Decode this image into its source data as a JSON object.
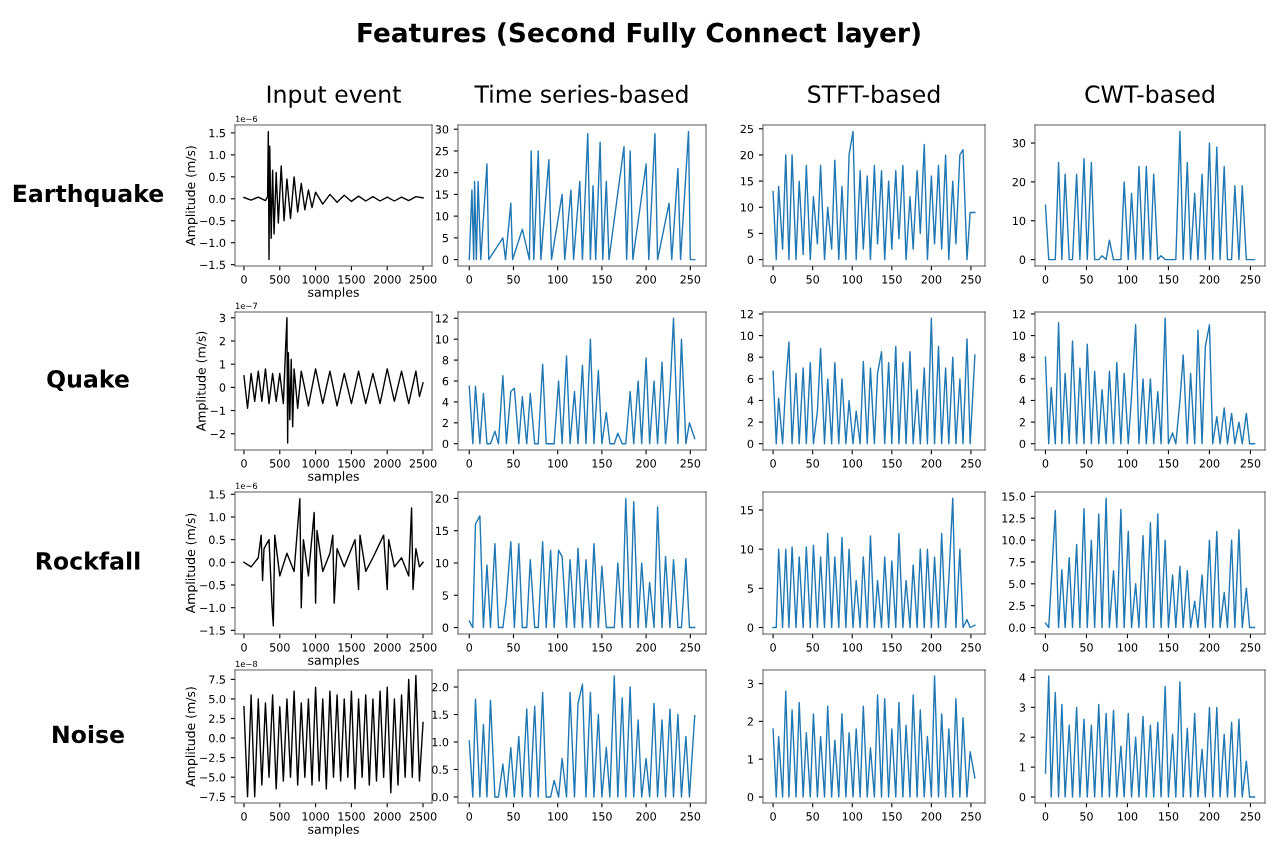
{
  "chart_data": [
    {
      "type": "other",
      "title": "Features (Second Fully Connect layer)",
      "annotations": [
        "Earthquake",
        "Quake",
        "Rockfall",
        "Noise"
      ]
    },
    {
      "type": "line",
      "title": "Input event",
      "xlabel": "samples",
      "ylabel": "Amplitude (m/s)",
      "annotations": [
        "1e−6"
      ],
      "xlim": [
        -125,
        2625
      ],
      "xticks": [
        0,
        500,
        1000,
        1500,
        2000,
        2500
      ],
      "ylim": [
        -1.53,
        1.68
      ],
      "yticks": [
        -1.5,
        {
          "value": -1,
          "label": "−1.0"
        },
        -0.5,
        {
          "value": 0,
          "label": "0.0"
        },
        0.5,
        {
          "value": 1,
          "label": "1.0"
        },
        1.5
      ],
      "series": [
        {
          "color": "#000000",
          "x": [
            0,
            100,
            200,
            300,
            330,
            340,
            350,
            360,
            380,
            400,
            420,
            450,
            480,
            520,
            560,
            600,
            650,
            700,
            750,
            800,
            850,
            900,
            950,
            1000,
            1100,
            1200,
            1300,
            1400,
            1500,
            1600,
            1700,
            1800,
            1900,
            2000,
            2100,
            2200,
            2300,
            2400,
            2500
          ],
          "values": [
            0.03,
            -0.03,
            0.04,
            -0.04,
            0.05,
            1.53,
            -1.38,
            1.2,
            -0.9,
            0.65,
            -0.8,
            0.6,
            -0.55,
            0.75,
            -0.5,
            0.45,
            -0.45,
            0.5,
            -0.3,
            0.35,
            -0.25,
            0.2,
            -0.2,
            0.15,
            -0.12,
            0.1,
            -0.08,
            0.08,
            -0.06,
            0.06,
            -0.05,
            0.05,
            -0.05,
            0.04,
            -0.05,
            0.04,
            -0.04,
            0.05,
            0.02
          ]
        }
      ]
    },
    {
      "type": "line",
      "title": "Time series-based",
      "xlim": [
        -12.75,
        267.75
      ],
      "xticks": [
        0,
        50,
        100,
        150,
        200,
        250
      ],
      "ylim": [
        -1.475,
        30.975
      ],
      "yticks": [
        0,
        5,
        10,
        15,
        20,
        25,
        30
      ],
      "series": [
        {
          "color": "#1f77b4",
          "x": [
            0,
            3,
            5,
            6,
            8,
            10,
            13,
            20,
            22,
            38,
            41,
            47,
            49,
            60,
            68,
            70,
            73,
            78,
            81,
            90,
            93,
            105,
            108,
            115,
            118,
            125,
            128,
            134,
            137,
            140,
            143,
            148,
            151,
            155,
            158,
            175,
            178,
            182,
            185,
            200,
            203,
            210,
            213,
            226,
            229,
            236,
            239,
            248,
            250,
            255
          ],
          "values": [
            0,
            16,
            0,
            18,
            0,
            18,
            0,
            22,
            0,
            5,
            0,
            13,
            0,
            7,
            0,
            25,
            0,
            25,
            0,
            23,
            0,
            15,
            0,
            16,
            0,
            18,
            0,
            29,
            0,
            17,
            0,
            27,
            0,
            18,
            0,
            26,
            0,
            25,
            0,
            22,
            0,
            29,
            0,
            13,
            0,
            21,
            0,
            29.5,
            0,
            0
          ]
        }
      ]
    },
    {
      "type": "line",
      "title": "STFT-based",
      "xlim": [
        -12.75,
        267.75
      ],
      "xticks": [
        0,
        50,
        100,
        150,
        200,
        250
      ],
      "ylim": [
        -1.225,
        25.725
      ],
      "yticks": [
        0,
        5,
        10,
        15,
        20,
        25
      ],
      "x": [
        0,
        4,
        7,
        12,
        16,
        20,
        24,
        29,
        33,
        38,
        42,
        47,
        51,
        56,
        60,
        65,
        69,
        74,
        78,
        83,
        87,
        92,
        96,
        101,
        105,
        110,
        114,
        119,
        123,
        128,
        132,
        137,
        141,
        146,
        150,
        155,
        159,
        164,
        168,
        173,
        177,
        182,
        186,
        191,
        195,
        200,
        204,
        209,
        213,
        218,
        222,
        227,
        231,
        236,
        240,
        245,
        249,
        255
      ],
      "series": [
        {
          "color": "#1f77b4",
          "values": [
            13,
            0,
            14,
            2,
            20,
            0,
            20,
            0,
            15,
            1,
            18,
            0,
            12,
            3,
            18,
            0,
            10,
            2,
            19,
            0,
            14,
            0,
            20,
            24.5,
            0,
            17,
            2,
            16,
            0,
            18,
            3,
            17,
            0,
            15,
            2,
            17,
            4,
            18,
            0,
            12,
            2,
            17,
            5,
            22,
            0,
            16,
            3,
            18,
            2,
            20,
            0,
            15,
            3,
            20,
            21,
            0,
            9,
            9
          ]
        }
      ]
    },
    {
      "type": "line",
      "title": "CWT-based",
      "xlim": [
        -12.75,
        267.75
      ],
      "xticks": [
        0,
        50,
        100,
        150,
        200,
        250
      ],
      "ylim": [
        -1.65,
        34.65
      ],
      "yticks": [
        0,
        10,
        20,
        30
      ],
      "x": [
        0,
        4,
        7,
        12,
        16,
        20,
        24,
        29,
        33,
        38,
        42,
        47,
        51,
        56,
        60,
        65,
        69,
        74,
        78,
        83,
        87,
        92,
        96,
        101,
        105,
        110,
        114,
        119,
        123,
        128,
        132,
        137,
        141,
        146,
        150,
        155,
        159,
        164,
        168,
        173,
        177,
        182,
        186,
        191,
        195,
        200,
        204,
        209,
        213,
        218,
        222,
        227,
        231,
        236,
        240,
        245,
        249,
        255
      ],
      "series": [
        {
          "color": "#1f77b4",
          "values": [
            14,
            0,
            0,
            0,
            25,
            0,
            22,
            0,
            0,
            22,
            0,
            26,
            0,
            25,
            0,
            0,
            1,
            0,
            5,
            0,
            0,
            0,
            20,
            0,
            17,
            0,
            24,
            0,
            24,
            0,
            22,
            0,
            1,
            0,
            0,
            0,
            0,
            33,
            0,
            25,
            0,
            17,
            0,
            22,
            0,
            30,
            0,
            29,
            0,
            24,
            0,
            0,
            19,
            0,
            19,
            0,
            0,
            0
          ]
        }
      ]
    },
    {
      "type": "line",
      "xlabel": "samples",
      "ylabel": "Amplitude (m/s)",
      "annotations": [
        "1e−7"
      ],
      "xlim": [
        -125,
        2625
      ],
      "xticks": [
        0,
        500,
        1000,
        1500,
        2000,
        2500
      ],
      "ylim": [
        -2.7,
        3.25
      ],
      "yticks": [
        -2,
        -1,
        0,
        1,
        2,
        3
      ],
      "series": [
        {
          "color": "#000000",
          "x": [
            0,
            50,
            100,
            150,
            200,
            250,
            300,
            350,
            400,
            450,
            500,
            550,
            580,
            600,
            610,
            620,
            640,
            660,
            680,
            700,
            750,
            800,
            900,
            1000,
            1100,
            1200,
            1300,
            1400,
            1500,
            1600,
            1700,
            1800,
            1900,
            2000,
            2100,
            2200,
            2300,
            2400,
            2450,
            2500
          ],
          "values": [
            0.5,
            -0.9,
            0.6,
            -0.6,
            0.7,
            -0.6,
            0.8,
            -0.7,
            0.6,
            -0.6,
            0.6,
            -0.7,
            1.6,
            3.0,
            -2.4,
            1.5,
            -1.4,
            1.2,
            -1.7,
            0.8,
            -0.9,
            0.7,
            -0.8,
            0.8,
            -0.7,
            0.7,
            -0.8,
            0.6,
            -0.7,
            0.7,
            -0.7,
            0.6,
            -0.7,
            0.8,
            -0.6,
            0.7,
            -0.7,
            0.7,
            -0.4,
            0.2
          ]
        }
      ]
    },
    {
      "type": "line",
      "xlim": [
        -12.75,
        267.75
      ],
      "xticks": [
        0,
        50,
        100,
        150,
        200,
        250
      ],
      "ylim": [
        -0.6,
        12.6
      ],
      "yticks": [
        0,
        2,
        4,
        6,
        8,
        10,
        12
      ],
      "x": [
        0,
        4,
        7,
        12,
        16,
        20,
        24,
        29,
        33,
        38,
        42,
        47,
        51,
        56,
        60,
        65,
        69,
        74,
        78,
        83,
        87,
        92,
        96,
        101,
        105,
        110,
        114,
        119,
        123,
        128,
        132,
        137,
        141,
        146,
        150,
        155,
        159,
        164,
        168,
        173,
        177,
        182,
        186,
        191,
        195,
        200,
        204,
        209,
        213,
        218,
        222,
        227,
        231,
        236,
        240,
        245,
        249,
        255
      ],
      "series": [
        {
          "color": "#1f77b4",
          "values": [
            5.5,
            0,
            5.5,
            0,
            4.8,
            0,
            0,
            1.2,
            0,
            6.5,
            0,
            5,
            5.3,
            0,
            4.5,
            0,
            4.8,
            0,
            0,
            7.6,
            0,
            0,
            0,
            6,
            0,
            8.4,
            0,
            5,
            0,
            7.5,
            0,
            10,
            0,
            7,
            0,
            3,
            0,
            0,
            1,
            0,
            0,
            5,
            0,
            6,
            0,
            8.2,
            0,
            6,
            0,
            7.8,
            0,
            5,
            12,
            0,
            10,
            0,
            2,
            0.5
          ]
        }
      ]
    },
    {
      "type": "line",
      "xlim": [
        -12.75,
        267.75
      ],
      "xticks": [
        0,
        50,
        100,
        150,
        200,
        250
      ],
      "ylim": [
        -0.58,
        12.18
      ],
      "yticks": [
        0,
        2,
        4,
        6,
        8,
        10,
        12
      ],
      "x": [
        0,
        4,
        7,
        12,
        16,
        20,
        24,
        29,
        33,
        38,
        42,
        47,
        51,
        56,
        60,
        65,
        69,
        74,
        78,
        83,
        87,
        92,
        96,
        101,
        105,
        110,
        114,
        119,
        123,
        128,
        132,
        137,
        141,
        146,
        150,
        155,
        159,
        164,
        168,
        173,
        177,
        182,
        186,
        191,
        195,
        200,
        204,
        209,
        213,
        218,
        222,
        227,
        231,
        236,
        240,
        245,
        249,
        255
      ],
      "series": [
        {
          "color": "#1f77b4",
          "values": [
            6.7,
            0,
            4.2,
            0,
            5.5,
            9.4,
            0,
            6.5,
            0,
            7,
            0,
            7.5,
            0,
            3,
            8.8,
            0,
            6,
            0,
            7.5,
            0,
            6,
            0,
            4,
            0,
            3,
            0,
            7.6,
            0,
            7,
            0,
            6.5,
            8.5,
            0,
            7.5,
            0,
            9,
            0,
            7.5,
            0,
            8.5,
            0,
            5,
            0,
            7,
            0,
            11.6,
            0,
            9,
            0,
            7,
            0,
            8,
            0,
            6,
            0,
            9.7,
            0,
            8.2
          ]
        }
      ]
    },
    {
      "type": "line",
      "xlim": [
        -12.75,
        267.75
      ],
      "xticks": [
        0,
        50,
        100,
        150,
        200,
        250
      ],
      "ylim": [
        -0.58,
        12.18
      ],
      "yticks": [
        0,
        2,
        4,
        6,
        8,
        10,
        12
      ],
      "x": [
        0,
        4,
        7,
        12,
        16,
        20,
        24,
        29,
        33,
        38,
        42,
        47,
        51,
        56,
        60,
        65,
        69,
        74,
        78,
        83,
        87,
        92,
        96,
        101,
        105,
        110,
        114,
        119,
        123,
        128,
        132,
        137,
        141,
        146,
        150,
        155,
        159,
        164,
        168,
        173,
        177,
        182,
        186,
        191,
        195,
        200,
        204,
        209,
        213,
        218,
        222,
        227,
        231,
        236,
        240,
        245,
        249,
        255
      ],
      "series": [
        {
          "color": "#1f77b4",
          "values": [
            8,
            0,
            5.2,
            0,
            11.2,
            0,
            6.5,
            0,
            9.5,
            0,
            7,
            0,
            9.2,
            0,
            6.7,
            0,
            5,
            0,
            6.7,
            0,
            7.5,
            0,
            6.5,
            0,
            4.4,
            11,
            0,
            6,
            0,
            6,
            0,
            4.8,
            0,
            11.6,
            0,
            1,
            0,
            4,
            8.2,
            0,
            6.5,
            0,
            10.5,
            0,
            9,
            11,
            0,
            2.5,
            0,
            3.3,
            0,
            2.8,
            0,
            2,
            0,
            2.8,
            0,
            0
          ]
        }
      ]
    },
    {
      "type": "line",
      "xlabel": "samples",
      "ylabel": "Amplitude (m/s)",
      "annotations": [
        "1e−6"
      ],
      "xlim": [
        -125,
        2625
      ],
      "xticks": [
        0,
        500,
        1000,
        1500,
        2000,
        2500
      ],
      "ylim": [
        -1.58,
        1.55
      ],
      "yticks": [
        -1.5,
        {
          "value": -1,
          "label": "−1.0"
        },
        -0.5,
        {
          "value": 0,
          "label": "0.0"
        },
        0.5,
        {
          "value": 1,
          "label": "1.0"
        },
        1.5
      ],
      "series": [
        {
          "color": "#000000",
          "x": [
            0,
            100,
            200,
            240,
            260,
            280,
            350,
            390,
            410,
            430,
            500,
            600,
            700,
            760,
            780,
            800,
            830,
            900,
            980,
            1000,
            1020,
            1100,
            1200,
            1240,
            1260,
            1300,
            1400,
            1550,
            1600,
            1620,
            1700,
            1800,
            1950,
            2000,
            2020,
            2100,
            2200,
            2300,
            2340,
            2360,
            2400,
            2450,
            2500
          ],
          "values": [
            0,
            -0.1,
            0.1,
            0.6,
            -0.4,
            0.3,
            0.5,
            -0.9,
            -1.4,
            0.6,
            -0.3,
            0.2,
            -0.2,
            1.0,
            1.4,
            -1.0,
            0.5,
            -0.3,
            1.1,
            -0.9,
            0.7,
            -0.2,
            0.2,
            0.6,
            -0.9,
            0.3,
            -0.1,
            0.5,
            -0.6,
            0.6,
            -0.2,
            0.1,
            0.6,
            -0.6,
            0.5,
            -0.1,
            0.1,
            -0.3,
            1.2,
            -0.6,
            0.3,
            -0.1,
            0
          ]
        }
      ]
    },
    {
      "type": "line",
      "xlim": [
        -12.75,
        267.75
      ],
      "xticks": [
        0,
        50,
        100,
        150,
        200,
        250
      ],
      "ylim": [
        -1,
        21
      ],
      "yticks": [
        0,
        5,
        10,
        15,
        20
      ],
      "x": [
        0,
        4,
        7,
        12,
        16,
        20,
        24,
        29,
        33,
        38,
        42,
        47,
        51,
        56,
        60,
        65,
        69,
        74,
        78,
        83,
        87,
        92,
        96,
        101,
        105,
        110,
        114,
        119,
        123,
        128,
        132,
        137,
        141,
        146,
        150,
        155,
        159,
        164,
        168,
        173,
        177,
        182,
        186,
        191,
        195,
        200,
        204,
        209,
        213,
        218,
        222,
        227,
        231,
        236,
        240,
        245,
        249,
        255
      ],
      "series": [
        {
          "color": "#1f77b4",
          "values": [
            1,
            0,
            16,
            17.3,
            0,
            9.7,
            0,
            13,
            0,
            0,
            4.5,
            13.3,
            0,
            13,
            0,
            0,
            10.5,
            0,
            0,
            13.3,
            0,
            12,
            0,
            12,
            11,
            0,
            10.5,
            0,
            12.3,
            0,
            10.5,
            0,
            13,
            0,
            9.5,
            0,
            0,
            0,
            10,
            0,
            20,
            0,
            19.5,
            0,
            10,
            0,
            7,
            0,
            18.7,
            0,
            11,
            0,
            10.5,
            0,
            0,
            10.7,
            0,
            0
          ]
        }
      ]
    },
    {
      "type": "line",
      "xlim": [
        -12.75,
        267.75
      ],
      "xticks": [
        0,
        50,
        100,
        150,
        200,
        250
      ],
      "ylim": [
        -0.83,
        17.3
      ],
      "yticks": [
        0,
        5,
        10,
        15
      ],
      "x": [
        0,
        4,
        7,
        12,
        16,
        20,
        24,
        29,
        33,
        38,
        42,
        47,
        51,
        56,
        60,
        65,
        69,
        74,
        78,
        83,
        87,
        92,
        96,
        101,
        105,
        110,
        114,
        119,
        123,
        128,
        132,
        137,
        141,
        146,
        150,
        155,
        159,
        164,
        168,
        173,
        177,
        182,
        186,
        191,
        195,
        200,
        204,
        209,
        213,
        218,
        222,
        227,
        231,
        236,
        240,
        245,
        249,
        255
      ],
      "series": [
        {
          "color": "#1f77b4",
          "values": [
            0,
            0,
            10,
            0,
            10,
            0,
            10.3,
            0,
            9,
            0,
            10.3,
            0,
            10.5,
            0,
            9,
            0,
            12,
            0,
            9,
            0,
            11.5,
            0,
            10,
            0,
            6,
            0,
            9,
            0,
            11.7,
            0,
            6,
            0,
            9,
            0,
            8.5,
            0,
            12,
            0,
            6,
            0,
            8,
            0,
            10,
            0,
            10,
            0,
            9,
            0,
            12,
            0,
            6,
            16.5,
            0,
            10,
            0,
            1,
            0,
            0.3
          ]
        }
      ]
    },
    {
      "type": "line",
      "xlim": [
        -12.75,
        267.75
      ],
      "xticks": [
        0,
        50,
        100,
        150,
        200,
        250
      ],
      "ylim": [
        -0.74,
        15.5
      ],
      "yticks": [
        {
          "value": 0,
          "label": "0.0"
        },
        2.5,
        {
          "value": 5,
          "label": "5.0"
        },
        7.5,
        {
          "value": 10,
          "label": "10.0"
        },
        12.5,
        {
          "value": 15,
          "label": "15.0"
        }
      ],
      "x": [
        0,
        4,
        7,
        12,
        16,
        20,
        24,
        29,
        33,
        38,
        42,
        47,
        51,
        56,
        60,
        65,
        69,
        74,
        78,
        83,
        87,
        92,
        96,
        101,
        105,
        110,
        114,
        119,
        123,
        128,
        132,
        137,
        141,
        146,
        150,
        155,
        159,
        164,
        168,
        173,
        177,
        182,
        186,
        191,
        195,
        200,
        204,
        209,
        213,
        218,
        222,
        227,
        231,
        236,
        240,
        245,
        249,
        255
      ],
      "series": [
        {
          "color": "#1f77b4",
          "values": [
            0.5,
            0,
            5,
            13.4,
            0,
            6.6,
            0,
            8,
            0,
            9.5,
            0,
            13.6,
            0,
            10,
            0,
            13,
            0,
            14.8,
            0,
            6.5,
            0,
            13.5,
            0,
            11,
            0,
            5,
            0,
            10.5,
            0,
            12,
            0,
            13,
            0,
            10,
            0,
            6,
            0,
            7,
            0,
            6.5,
            0,
            3,
            0,
            6,
            0,
            10,
            0,
            11,
            0,
            4,
            0,
            10,
            0,
            11.2,
            0,
            4.5,
            0,
            0
          ]
        }
      ]
    },
    {
      "type": "line",
      "xlabel": "samples",
      "ylabel": "Amplitude (m/s)",
      "annotations": [
        "1e−8"
      ],
      "xlim": [
        -125,
        2625
      ],
      "xticks": [
        0,
        500,
        1000,
        1500,
        2000,
        2500
      ],
      "ylim": [
        -8.3,
        8.7
      ],
      "yticks": [
        -7.5,
        {
          "value": -5,
          "label": "−5.0"
        },
        -2.5,
        {
          "value": 0,
          "label": "0.0"
        },
        2.5,
        {
          "value": 5,
          "label": "5.0"
        },
        7.5
      ],
      "series": [
        {
          "color": "#000000",
          "x": [
            0,
            50,
            100,
            150,
            200,
            250,
            300,
            350,
            400,
            450,
            500,
            550,
            600,
            650,
            700,
            750,
            800,
            850,
            900,
            950,
            1000,
            1050,
            1100,
            1150,
            1200,
            1250,
            1300,
            1350,
            1400,
            1450,
            1500,
            1550,
            1600,
            1650,
            1700,
            1750,
            1800,
            1850,
            1900,
            1950,
            2000,
            2050,
            2100,
            2150,
            2200,
            2250,
            2300,
            2350,
            2400,
            2450,
            2500
          ],
          "values": [
            4,
            -7.5,
            5.5,
            -7.5,
            5,
            -6,
            4.5,
            -5,
            5.5,
            -6.5,
            4,
            -5.5,
            5,
            -5,
            6,
            -6,
            4.5,
            -5,
            5,
            -6,
            6.5,
            -5.5,
            5,
            -6.5,
            6,
            -5,
            5.5,
            -5.5,
            5,
            -5,
            6,
            -6.5,
            5,
            -5,
            5.5,
            -6,
            5,
            -5.5,
            6,
            -5,
            6.5,
            -7,
            5,
            -6,
            5.5,
            -5,
            7.5,
            -5,
            8,
            -5.5,
            2
          ]
        }
      ]
    },
    {
      "type": "line",
      "xlim": [
        -12.75,
        267.75
      ],
      "xticks": [
        0,
        50,
        100,
        150,
        200,
        250
      ],
      "ylim": [
        -0.11,
        2.31
      ],
      "yticks": [
        {
          "value": 0,
          "label": "0.0"
        },
        0.5,
        {
          "value": 1,
          "label": "1.0"
        },
        1.5,
        {
          "value": 2,
          "label": "2.0"
        }
      ],
      "x": [
        0,
        4,
        7,
        12,
        16,
        20,
        24,
        29,
        33,
        38,
        42,
        47,
        51,
        56,
        60,
        65,
        69,
        74,
        78,
        83,
        87,
        92,
        96,
        101,
        105,
        110,
        114,
        119,
        123,
        128,
        132,
        137,
        141,
        146,
        150,
        155,
        159,
        164,
        168,
        173,
        177,
        182,
        186,
        191,
        195,
        200,
        204,
        209,
        213,
        218,
        222,
        227,
        231,
        236,
        240,
        245,
        249,
        255
      ],
      "series": [
        {
          "color": "#1f77b4",
          "values": [
            1.02,
            0,
            1.78,
            0,
            1.32,
            0,
            1.76,
            0,
            0,
            0.6,
            0,
            0.9,
            0,
            1.1,
            0,
            1.6,
            0,
            1.65,
            0,
            1.9,
            0,
            0,
            0.3,
            0,
            0.7,
            0,
            1.9,
            0,
            1.7,
            2.05,
            0,
            1.9,
            0,
            1.5,
            0,
            0.9,
            0,
            2.2,
            0,
            1.8,
            0,
            2,
            0,
            1.4,
            0,
            0.7,
            0,
            1.7,
            0,
            1.4,
            0,
            1.6,
            0,
            1.5,
            0,
            1.1,
            0,
            1.48
          ]
        }
      ]
    },
    {
      "type": "line",
      "xlim": [
        -12.75,
        267.75
      ],
      "xticks": [
        0,
        50,
        100,
        150,
        200,
        250
      ],
      "ylim": [
        -0.16,
        3.36
      ],
      "yticks": [
        0,
        1,
        2,
        3
      ],
      "x": [
        0,
        4,
        7,
        12,
        16,
        20,
        24,
        29,
        33,
        38,
        42,
        47,
        51,
        56,
        60,
        65,
        69,
        74,
        78,
        83,
        87,
        92,
        96,
        101,
        105,
        110,
        114,
        119,
        123,
        128,
        132,
        137,
        141,
        146,
        150,
        155,
        159,
        164,
        168,
        173,
        177,
        182,
        186,
        191,
        195,
        200,
        204,
        209,
        213,
        218,
        222,
        227,
        231,
        236,
        240,
        245,
        249,
        255
      ],
      "series": [
        {
          "color": "#1f77b4",
          "values": [
            1.8,
            0,
            1.6,
            0,
            2.8,
            0,
            2.3,
            0,
            2.5,
            0,
            1.7,
            0,
            2.2,
            0,
            1.6,
            0,
            2.4,
            0,
            1.5,
            0,
            2.2,
            0,
            1.7,
            0,
            1.8,
            0,
            2.4,
            0,
            1.3,
            0,
            2.7,
            0,
            2.6,
            0,
            1.8,
            0,
            2.5,
            0,
            1.9,
            0,
            2.7,
            0,
            2.3,
            0,
            1.6,
            0,
            3.2,
            0,
            2.2,
            0,
            1.8,
            0,
            2.6,
            0,
            2.1,
            0,
            1.2,
            0.5
          ]
        }
      ]
    },
    {
      "type": "line",
      "xlim": [
        -12.75,
        267.75
      ],
      "xticks": [
        0,
        50,
        100,
        150,
        200,
        250
      ],
      "ylim": [
        -0.2,
        4.25
      ],
      "yticks": [
        0,
        1,
        2,
        3,
        4
      ],
      "x": [
        0,
        4,
        7,
        12,
        16,
        20,
        24,
        29,
        33,
        38,
        42,
        47,
        51,
        56,
        60,
        65,
        69,
        74,
        78,
        83,
        87,
        92,
        96,
        101,
        105,
        110,
        114,
        119,
        123,
        128,
        132,
        137,
        141,
        146,
        150,
        155,
        159,
        164,
        168,
        173,
        177,
        182,
        186,
        191,
        195,
        200,
        204,
        209,
        213,
        218,
        222,
        227,
        231,
        236,
        240,
        245,
        249,
        255
      ],
      "series": [
        {
          "color": "#1f77b4",
          "values": [
            0.8,
            4.05,
            0,
            3.5,
            0,
            3.1,
            0,
            2.4,
            0,
            3.0,
            0,
            2.6,
            0,
            2.4,
            0,
            3.1,
            0,
            2.8,
            0,
            2.9,
            0,
            1.7,
            0,
            2.8,
            0,
            2.0,
            0,
            2.7,
            0,
            2.4,
            0,
            2.5,
            0,
            3.7,
            0,
            2.1,
            0,
            3.85,
            0,
            2.3,
            0,
            2.8,
            0,
            1.6,
            0,
            3.0,
            0,
            3.0,
            0,
            2.1,
            0,
            2.5,
            0,
            2.6,
            0,
            1.2,
            0,
            0
          ]
        }
      ]
    }
  ]
}
